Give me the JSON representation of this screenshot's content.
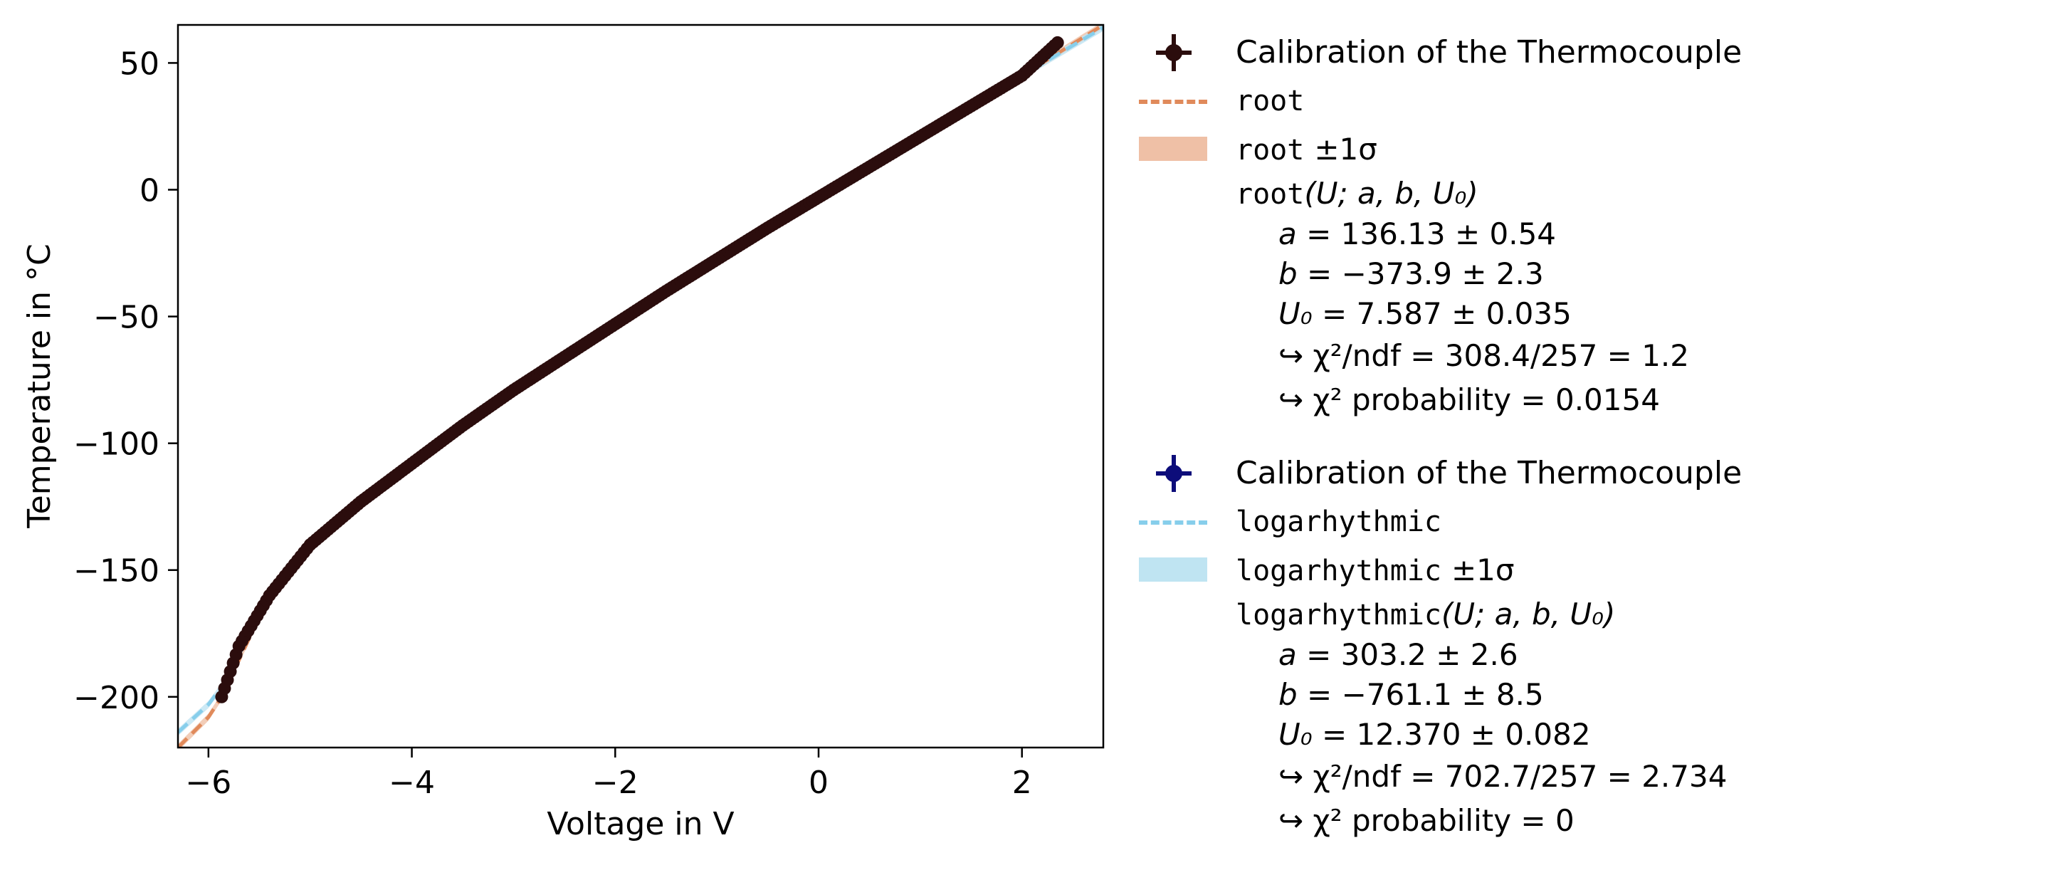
{
  "chart_data": {
    "type": "scatter",
    "xlabel": "Voltage in V",
    "ylabel": "Temperature in °C",
    "xlim": [
      -6.3,
      2.8
    ],
    "ylim": [
      -220,
      65
    ],
    "xticks": [
      -6,
      -4,
      -2,
      0,
      2
    ],
    "yticks": [
      -200,
      -150,
      -100,
      -50,
      0,
      50
    ],
    "xtick_labels": [
      "−6",
      "−4",
      "−2",
      "0",
      "2"
    ],
    "ytick_labels": [
      "−200",
      "−150",
      "−100",
      "−50",
      "0",
      "50"
    ],
    "grid": false,
    "legend_placement": "outside-right",
    "series": [
      {
        "name": "Calibration of the Thermocouple",
        "kind": "data",
        "color": "#2b0d0d",
        "points": [
          [
            -5.87,
            -200
          ],
          [
            -5.7,
            -180
          ],
          [
            -5.4,
            -160
          ],
          [
            -5.0,
            -140
          ],
          [
            -4.5,
            -123
          ],
          [
            -4.0,
            -108
          ],
          [
            -3.5,
            -93
          ],
          [
            -3.0,
            -79
          ],
          [
            -2.5,
            -66
          ],
          [
            -2.0,
            -53
          ],
          [
            -1.5,
            -40
          ],
          [
            -1.0,
            -27.5
          ],
          [
            -0.5,
            -15
          ],
          [
            0.0,
            -3
          ],
          [
            0.5,
            9
          ],
          [
            1.0,
            21
          ],
          [
            1.5,
            33
          ],
          [
            2.0,
            45
          ],
          [
            2.35,
            58
          ]
        ]
      },
      {
        "name": "root",
        "kind": "fit",
        "color": "#e08a5b",
        "band_color": "#efc0a6",
        "points": [
          [
            -6.3,
            -220
          ],
          [
            -6.0,
            -208
          ],
          [
            -5.87,
            -200
          ],
          [
            -5.4,
            -160
          ],
          [
            -5.0,
            -140
          ],
          [
            -4.0,
            -108
          ],
          [
            -3.0,
            -79
          ],
          [
            -2.0,
            -53
          ],
          [
            -1.0,
            -27.5
          ],
          [
            0.0,
            -3
          ],
          [
            1.0,
            21
          ],
          [
            2.0,
            45
          ],
          [
            2.8,
            65
          ]
        ]
      },
      {
        "name": "logarhythmic",
        "kind": "fit",
        "color": "#87ceeb",
        "band_color": "#bfe4f2",
        "points": [
          [
            -6.3,
            -214
          ],
          [
            -6.0,
            -203
          ],
          [
            -5.87,
            -196
          ],
          [
            -5.4,
            -161
          ],
          [
            -5.0,
            -140
          ],
          [
            -4.0,
            -108
          ],
          [
            -3.0,
            -79
          ],
          [
            -2.0,
            -53
          ],
          [
            -1.0,
            -27.5
          ],
          [
            0.0,
            -3
          ],
          [
            1.0,
            21
          ],
          [
            2.0,
            45
          ],
          [
            2.8,
            64
          ]
        ]
      }
    ]
  },
  "legend": {
    "blocks": [
      {
        "data_label": "Calibration of the Thermocouple",
        "data_color": "#2b0d0d",
        "fit_name": "root",
        "fit_color": "#e08a5b",
        "band_color": "#efc0a6",
        "band_suffix": "±1σ",
        "func_args": "(U; a, b, U₀)",
        "params": [
          {
            "name": "a",
            "value": "= 136.13 ± 0.54"
          },
          {
            "name": "b",
            "value": "= −373.9 ± 2.3"
          },
          {
            "name": "U₀",
            "value": "= 7.587 ± 0.035"
          }
        ],
        "chi2_ndf": "↪ χ²/ndf = 308.4/257 = 1.2",
        "chi2_prob": "↪ χ² probability = 0.0154"
      },
      {
        "data_label": "Calibration of the Thermocouple",
        "data_color": "#0d0d7a",
        "fit_name": "logarhythmic",
        "fit_color": "#87ceeb",
        "band_color": "#bfe4f2",
        "band_suffix": "±1σ",
        "func_args": "(U; a, b, U₀)",
        "params": [
          {
            "name": "a",
            "value": "= 303.2 ± 2.6"
          },
          {
            "name": "b",
            "value": "= −761.1 ± 8.5"
          },
          {
            "name": "U₀",
            "value": "= 12.370 ± 0.082"
          }
        ],
        "chi2_ndf": "↪ χ²/ndf = 702.7/257 = 2.734",
        "chi2_prob": "↪ χ² probability = 0"
      }
    ]
  }
}
